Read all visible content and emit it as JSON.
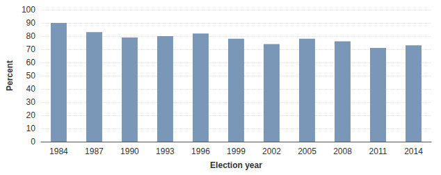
{
  "chart_data": {
    "type": "bar",
    "categories": [
      "1984",
      "1987",
      "1990",
      "1993",
      "1996",
      "1999",
      "2002",
      "2005",
      "2008",
      "2011",
      "2014"
    ],
    "values": [
      90,
      83,
      79,
      80,
      82,
      78,
      74,
      78,
      76,
      71,
      73
    ],
    "color": "#7a97b8",
    "xlabel": "Election year",
    "ylabel": "Percent",
    "ylim": [
      0,
      100
    ],
    "yticks": [
      0,
      10,
      20,
      30,
      40,
      50,
      60,
      70,
      80,
      90,
      100
    ],
    "grid": true
  }
}
